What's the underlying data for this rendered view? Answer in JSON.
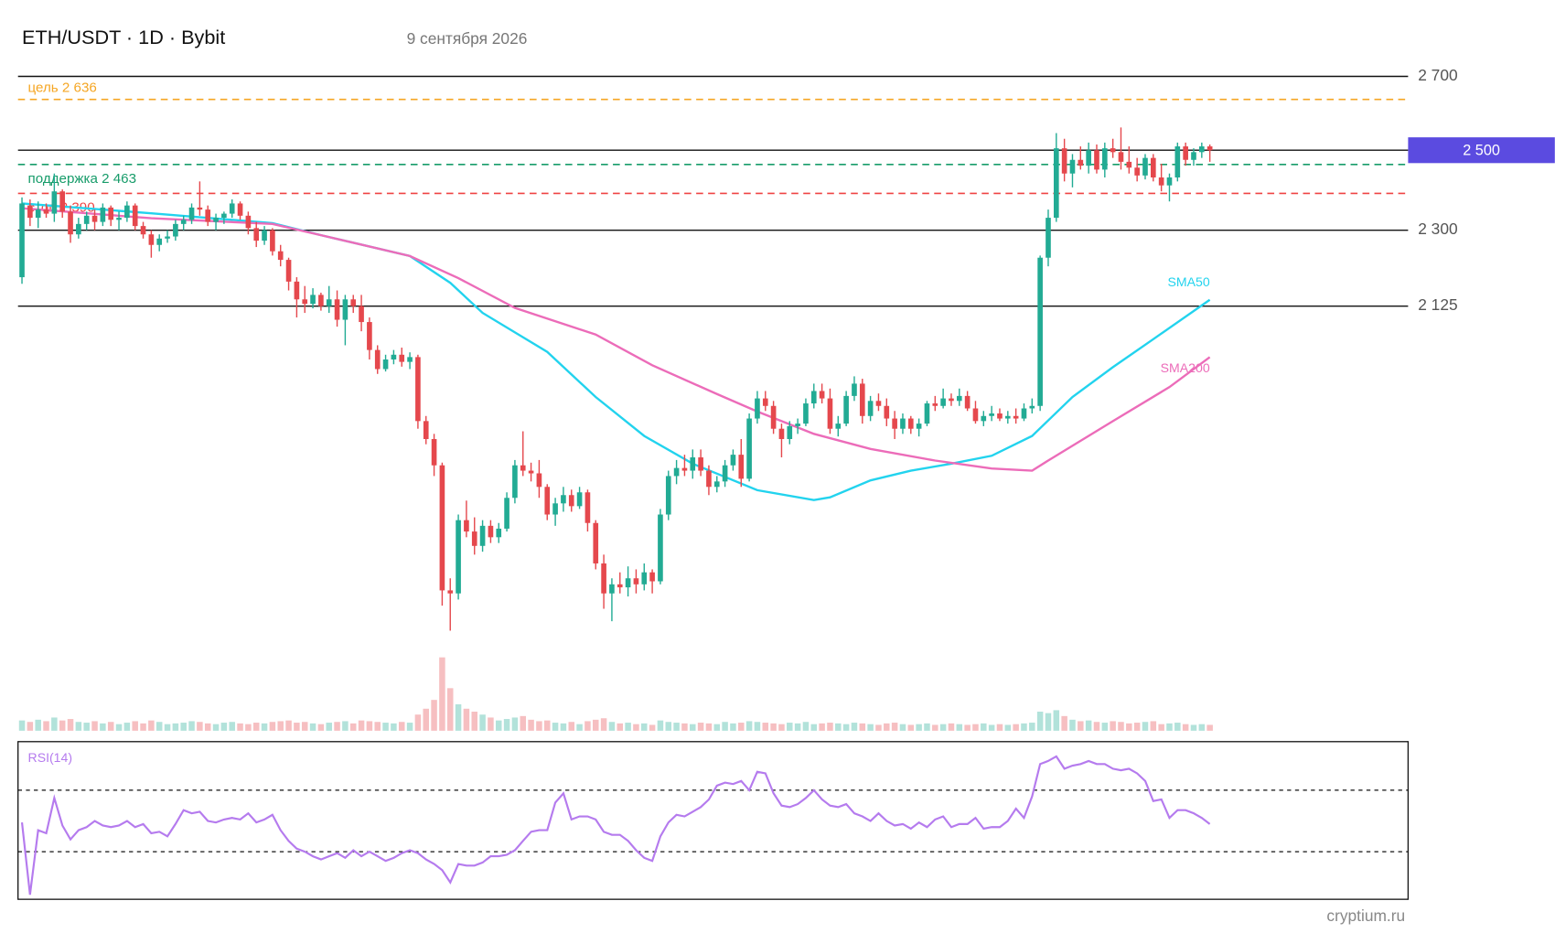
{
  "chart_data": {
    "type": "candlestick",
    "title": "ETH/USDT · 1D · Bybit",
    "subtitle": "9 сентября 2026",
    "source": "cryptium.ru",
    "log_scale": true,
    "ylim": [
      1478,
      2748
    ],
    "yticks": [
      {
        "value": 2700,
        "label": "2 700"
      },
      {
        "value": 2300,
        "label": "2 300"
      },
      {
        "value": 2125,
        "label": "2 125"
      }
    ],
    "last_price": {
      "value": 2500,
      "label": "2 500",
      "color": "#5b4be0"
    },
    "up_color": "#22ab94",
    "down_color": "#e5484d",
    "levels": [
      {
        "label": "цель 2 636",
        "value": 2636,
        "color": "#f5a623"
      },
      {
        "label": "поддержка 2 463",
        "value": 2463,
        "color": "#179c6a"
      },
      {
        "label": "стоп 2 390",
        "value": 2390,
        "color": "#ef4444"
      }
    ],
    "candles": [
      [
        2190,
        2380,
        2175,
        2365
      ],
      [
        2360,
        2375,
        2310,
        2330
      ],
      [
        2330,
        2370,
        2305,
        2350
      ],
      [
        2350,
        2365,
        2330,
        2340
      ],
      [
        2340,
        2440,
        2320,
        2395
      ],
      [
        2395,
        2400,
        2330,
        2345
      ],
      [
        2345,
        2360,
        2270,
        2290
      ],
      [
        2290,
        2330,
        2280,
        2315
      ],
      [
        2315,
        2345,
        2300,
        2335
      ],
      [
        2335,
        2350,
        2300,
        2320
      ],
      [
        2320,
        2365,
        2310,
        2355
      ],
      [
        2355,
        2360,
        2310,
        2325
      ],
      [
        2325,
        2345,
        2300,
        2330
      ],
      [
        2330,
        2370,
        2320,
        2360
      ],
      [
        2360,
        2365,
        2300,
        2310
      ],
      [
        2310,
        2320,
        2280,
        2290
      ],
      [
        2290,
        2300,
        2235,
        2265
      ],
      [
        2265,
        2290,
        2250,
        2280
      ],
      [
        2280,
        2300,
        2270,
        2285
      ],
      [
        2285,
        2325,
        2275,
        2315
      ],
      [
        2315,
        2335,
        2300,
        2325
      ],
      [
        2325,
        2365,
        2315,
        2355
      ],
      [
        2355,
        2420,
        2335,
        2350
      ],
      [
        2350,
        2360,
        2310,
        2320
      ],
      [
        2320,
        2340,
        2300,
        2330
      ],
      [
        2330,
        2345,
        2315,
        2340
      ],
      [
        2340,
        2375,
        2330,
        2365
      ],
      [
        2365,
        2370,
        2325,
        2335
      ],
      [
        2335,
        2345,
        2290,
        2305
      ],
      [
        2305,
        2320,
        2260,
        2275
      ],
      [
        2275,
        2310,
        2265,
        2300
      ],
      [
        2300,
        2305,
        2240,
        2250
      ],
      [
        2250,
        2265,
        2215,
        2230
      ],
      [
        2230,
        2235,
        2160,
        2180
      ],
      [
        2180,
        2190,
        2100,
        2140
      ],
      [
        2140,
        2170,
        2110,
        2130
      ],
      [
        2130,
        2165,
        2120,
        2150
      ],
      [
        2150,
        2155,
        2115,
        2125
      ],
      [
        2125,
        2170,
        2110,
        2140
      ],
      [
        2140,
        2160,
        2080,
        2095
      ],
      [
        2095,
        2150,
        2040,
        2140
      ],
      [
        2140,
        2150,
        2110,
        2125
      ],
      [
        2125,
        2150,
        2070,
        2090
      ],
      [
        2090,
        2100,
        2010,
        2030
      ],
      [
        2030,
        2040,
        1980,
        1990
      ],
      [
        1990,
        2020,
        1985,
        2010
      ],
      [
        2010,
        2030,
        2000,
        2020
      ],
      [
        2020,
        2035,
        1995,
        2005
      ],
      [
        2005,
        2025,
        1990,
        2015
      ],
      [
        2015,
        2020,
        1870,
        1885
      ],
      [
        1885,
        1895,
        1840,
        1850
      ],
      [
        1850,
        1860,
        1780,
        1800
      ],
      [
        1800,
        1805,
        1555,
        1580
      ],
      [
        1580,
        1600,
        1515,
        1575
      ],
      [
        1575,
        1710,
        1565,
        1700
      ],
      [
        1700,
        1735,
        1670,
        1680
      ],
      [
        1680,
        1705,
        1640,
        1655
      ],
      [
        1655,
        1700,
        1645,
        1690
      ],
      [
        1690,
        1700,
        1660,
        1670
      ],
      [
        1670,
        1695,
        1660,
        1685
      ],
      [
        1685,
        1750,
        1680,
        1740
      ],
      [
        1740,
        1810,
        1730,
        1800
      ],
      [
        1800,
        1865,
        1780,
        1790
      ],
      [
        1790,
        1805,
        1770,
        1785
      ],
      [
        1785,
        1810,
        1740,
        1760
      ],
      [
        1760,
        1765,
        1700,
        1710
      ],
      [
        1710,
        1740,
        1690,
        1730
      ],
      [
        1730,
        1760,
        1715,
        1745
      ],
      [
        1745,
        1755,
        1715,
        1725
      ],
      [
        1725,
        1760,
        1720,
        1750
      ],
      [
        1750,
        1755,
        1680,
        1695
      ],
      [
        1695,
        1700,
        1615,
        1625
      ],
      [
        1625,
        1640,
        1550,
        1575
      ],
      [
        1575,
        1600,
        1530,
        1590
      ],
      [
        1590,
        1610,
        1575,
        1585
      ],
      [
        1585,
        1620,
        1570,
        1600
      ],
      [
        1600,
        1615,
        1575,
        1590
      ],
      [
        1590,
        1625,
        1580,
        1610
      ],
      [
        1610,
        1615,
        1575,
        1595
      ],
      [
        1595,
        1720,
        1590,
        1710
      ],
      [
        1710,
        1790,
        1700,
        1780
      ],
      [
        1780,
        1810,
        1765,
        1795
      ],
      [
        1795,
        1820,
        1780,
        1790
      ],
      [
        1790,
        1830,
        1775,
        1815
      ],
      [
        1815,
        1830,
        1780,
        1790
      ],
      [
        1790,
        1800,
        1745,
        1760
      ],
      [
        1760,
        1780,
        1750,
        1770
      ],
      [
        1770,
        1810,
        1760,
        1800
      ],
      [
        1800,
        1830,
        1790,
        1820
      ],
      [
        1820,
        1850,
        1760,
        1775
      ],
      [
        1775,
        1900,
        1770,
        1890
      ],
      [
        1890,
        1945,
        1880,
        1930
      ],
      [
        1930,
        1945,
        1905,
        1915
      ],
      [
        1915,
        1925,
        1860,
        1870
      ],
      [
        1870,
        1880,
        1815,
        1850
      ],
      [
        1850,
        1885,
        1840,
        1875
      ],
      [
        1875,
        1890,
        1860,
        1880
      ],
      [
        1880,
        1930,
        1875,
        1920
      ],
      [
        1920,
        1960,
        1910,
        1945
      ],
      [
        1945,
        1960,
        1920,
        1930
      ],
      [
        1930,
        1950,
        1860,
        1870
      ],
      [
        1870,
        1895,
        1855,
        1880
      ],
      [
        1880,
        1945,
        1875,
        1935
      ],
      [
        1935,
        1975,
        1925,
        1960
      ],
      [
        1960,
        1970,
        1880,
        1895
      ],
      [
        1895,
        1935,
        1885,
        1925
      ],
      [
        1925,
        1940,
        1905,
        1915
      ],
      [
        1915,
        1930,
        1875,
        1890
      ],
      [
        1890,
        1905,
        1850,
        1870
      ],
      [
        1870,
        1900,
        1860,
        1890
      ],
      [
        1890,
        1895,
        1860,
        1870
      ],
      [
        1870,
        1890,
        1855,
        1880
      ],
      [
        1880,
        1925,
        1875,
        1920
      ],
      [
        1920,
        1935,
        1905,
        1915
      ],
      [
        1915,
        1950,
        1910,
        1930
      ],
      [
        1930,
        1940,
        1915,
        1925
      ],
      [
        1925,
        1950,
        1915,
        1935
      ],
      [
        1935,
        1945,
        1905,
        1910
      ],
      [
        1910,
        1925,
        1880,
        1885
      ],
      [
        1885,
        1905,
        1875,
        1895
      ],
      [
        1895,
        1915,
        1885,
        1900
      ],
      [
        1900,
        1910,
        1885,
        1890
      ],
      [
        1890,
        1905,
        1880,
        1895
      ],
      [
        1895,
        1910,
        1880,
        1890
      ],
      [
        1890,
        1920,
        1885,
        1910
      ],
      [
        1910,
        1930,
        1900,
        1915
      ],
      [
        1915,
        2240,
        1905,
        2235
      ],
      [
        2235,
        2350,
        2215,
        2330
      ],
      [
        2330,
        2545,
        2320,
        2505
      ],
      [
        2505,
        2530,
        2420,
        2440
      ],
      [
        2440,
        2490,
        2405,
        2475
      ],
      [
        2475,
        2510,
        2450,
        2460
      ],
      [
        2460,
        2520,
        2440,
        2500
      ],
      [
        2500,
        2515,
        2440,
        2450
      ],
      [
        2450,
        2520,
        2430,
        2505
      ],
      [
        2505,
        2530,
        2480,
        2495
      ],
      [
        2495,
        2560,
        2450,
        2470
      ],
      [
        2470,
        2510,
        2440,
        2455
      ],
      [
        2455,
        2480,
        2420,
        2435
      ],
      [
        2435,
        2490,
        2425,
        2480
      ],
      [
        2480,
        2490,
        2420,
        2430
      ],
      [
        2430,
        2465,
        2395,
        2410
      ],
      [
        2410,
        2440,
        2370,
        2430
      ],
      [
        2430,
        2520,
        2420,
        2510
      ],
      [
        2510,
        2520,
        2460,
        2475
      ],
      [
        2475,
        2505,
        2460,
        2495
      ],
      [
        2495,
        2520,
        2480,
        2510
      ],
      [
        2510,
        2515,
        2470,
        2500
      ]
    ],
    "overlays": [
      {
        "name": "SMA50",
        "color": "#22d3ee",
        "x": [
          0,
          16,
          31,
          37,
          48,
          53,
          57,
          65,
          71,
          77,
          83,
          91,
          98,
          100,
          105,
          110,
          115,
          120,
          125,
          130,
          135,
          140,
          147
        ],
        "values": [
          2365,
          2341,
          2317,
          2288,
          2239,
          2177,
          2110,
          2026,
          1933,
          1856,
          1803,
          1754,
          1736,
          1741,
          1772,
          1790,
          1803,
          1818,
          1856,
          1933,
          1994,
          2053,
          2139
        ]
      },
      {
        "name": "SMA200",
        "color": "#ec6cb9",
        "x": [
          0,
          16,
          31,
          37,
          48,
          54,
          61,
          71,
          78,
          86,
          91,
          98,
          105,
          113,
          120,
          125,
          127,
          135,
          142,
          147
        ],
        "values": [
          2353,
          2329,
          2315,
          2288,
          2239,
          2188,
          2121,
          2063,
          1998,
          1939,
          1904,
          1860,
          1831,
          1809,
          1794,
          1790,
          1809,
          1885,
          1953,
          2015
        ]
      }
    ],
    "volume": {
      "ylim": [
        0,
        100
      ],
      "values": [
        14,
        12,
        15,
        13,
        18,
        14,
        16,
        12,
        11,
        13,
        10,
        12,
        9,
        11,
        13,
        10,
        14,
        12,
        9,
        10,
        11,
        13,
        12,
        10,
        9,
        11,
        12,
        10,
        9,
        11,
        10,
        12,
        13,
        14,
        11,
        12,
        10,
        9,
        11,
        12,
        13,
        10,
        14,
        13,
        12,
        11,
        10,
        12,
        11,
        22,
        30,
        42,
        100,
        58,
        36,
        30,
        26,
        22,
        18,
        14,
        16,
        18,
        20,
        15,
        13,
        14,
        11,
        10,
        12,
        9,
        13,
        15,
        17,
        12,
        10,
        11,
        9,
        10,
        8,
        14,
        12,
        11,
        10,
        9,
        11,
        10,
        9,
        12,
        10,
        11,
        13,
        12,
        11,
        10,
        9,
        11,
        10,
        12,
        9,
        10,
        11,
        10,
        9,
        11,
        10,
        9,
        8,
        10,
        11,
        9,
        8,
        9,
        10,
        8,
        9,
        10,
        9,
        8,
        9,
        10,
        8,
        9,
        8,
        9,
        10,
        11,
        26,
        24,
        28,
        20,
        15,
        13,
        14,
        12,
        11,
        13,
        12,
        10,
        11,
        12,
        13,
        9,
        10,
        11,
        9,
        8,
        9,
        8
      ]
    },
    "rsi": {
      "label": "RSI(14)",
      "color": "#b57bee",
      "ylim": [
        0,
        100
      ],
      "levels": [
        30,
        70
      ],
      "values": [
        49,
        2,
        44,
        42,
        65,
        47,
        38,
        44,
        46,
        50,
        47,
        46,
        47,
        50,
        46,
        48,
        42,
        43,
        40,
        48,
        57,
        55,
        56,
        50,
        49,
        51,
        52,
        51,
        55,
        49,
        51,
        54,
        44,
        37,
        32,
        30,
        27,
        25,
        27,
        29,
        26,
        31,
        27,
        30,
        27,
        24,
        26,
        29,
        31,
        29,
        25,
        22,
        18,
        10,
        22,
        21,
        21,
        23,
        27,
        27,
        28,
        31,
        37,
        43,
        44,
        44,
        62,
        68,
        51,
        53,
        53,
        51,
        43,
        41,
        41,
        37,
        31,
        26,
        24,
        40,
        49,
        54,
        53,
        56,
        59,
        64,
        73,
        75,
        74,
        76,
        70,
        82,
        81,
        68,
        60,
        59,
        61,
        65,
        70,
        64,
        60,
        59,
        61,
        55,
        53,
        50,
        55,
        50,
        47,
        48,
        45,
        49,
        46,
        51,
        53,
        46,
        48,
        48,
        52,
        45,
        46,
        46,
        50,
        58,
        52,
        66,
        87,
        89,
        92,
        84,
        86,
        87,
        89,
        87,
        87,
        84,
        83,
        84,
        81,
        76,
        63,
        64,
        52,
        57,
        57,
        55,
        52,
        48
      ]
    }
  }
}
